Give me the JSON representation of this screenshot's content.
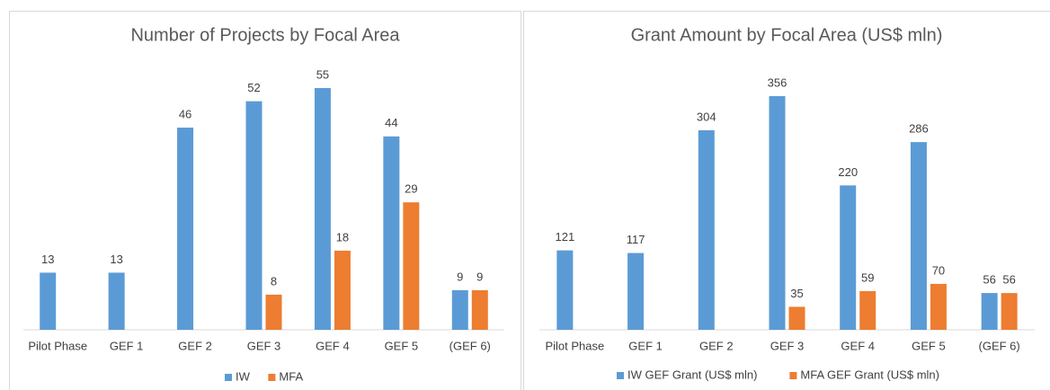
{
  "chart_data": [
    {
      "type": "bar",
      "title": "Number of Projects by Focal Area",
      "categories": [
        "Pilot Phase",
        "GEF 1",
        "GEF 2",
        "GEF 3",
        "GEF 4",
        "GEF 5",
        "(GEF 6)"
      ],
      "series": [
        {
          "name": "IW",
          "color": "#5b9bd5",
          "values": [
            13,
            13,
            46,
            52,
            55,
            44,
            9
          ]
        },
        {
          "name": "MFA",
          "color": "#ed7d31",
          "values": [
            null,
            null,
            null,
            8,
            18,
            29,
            9
          ]
        }
      ],
      "legend": "bottom"
    },
    {
      "type": "bar",
      "title": "Grant Amount by Focal Area (US$ mln)",
      "categories": [
        "Pilot Phase",
        "GEF 1",
        "GEF 2",
        "GEF 3",
        "GEF 4",
        "GEF 5",
        "(GEF 6)"
      ],
      "series": [
        {
          "name": "IW GEF Grant (US$ mln)",
          "color": "#5b9bd5",
          "values": [
            121,
            117,
            304,
            356,
            220,
            286,
            56
          ]
        },
        {
          "name": "MFA GEF Grant (US$ mln)",
          "color": "#ed7d31",
          "values": [
            null,
            null,
            null,
            35,
            59,
            70,
            56
          ]
        }
      ],
      "legend": "bottom"
    }
  ]
}
